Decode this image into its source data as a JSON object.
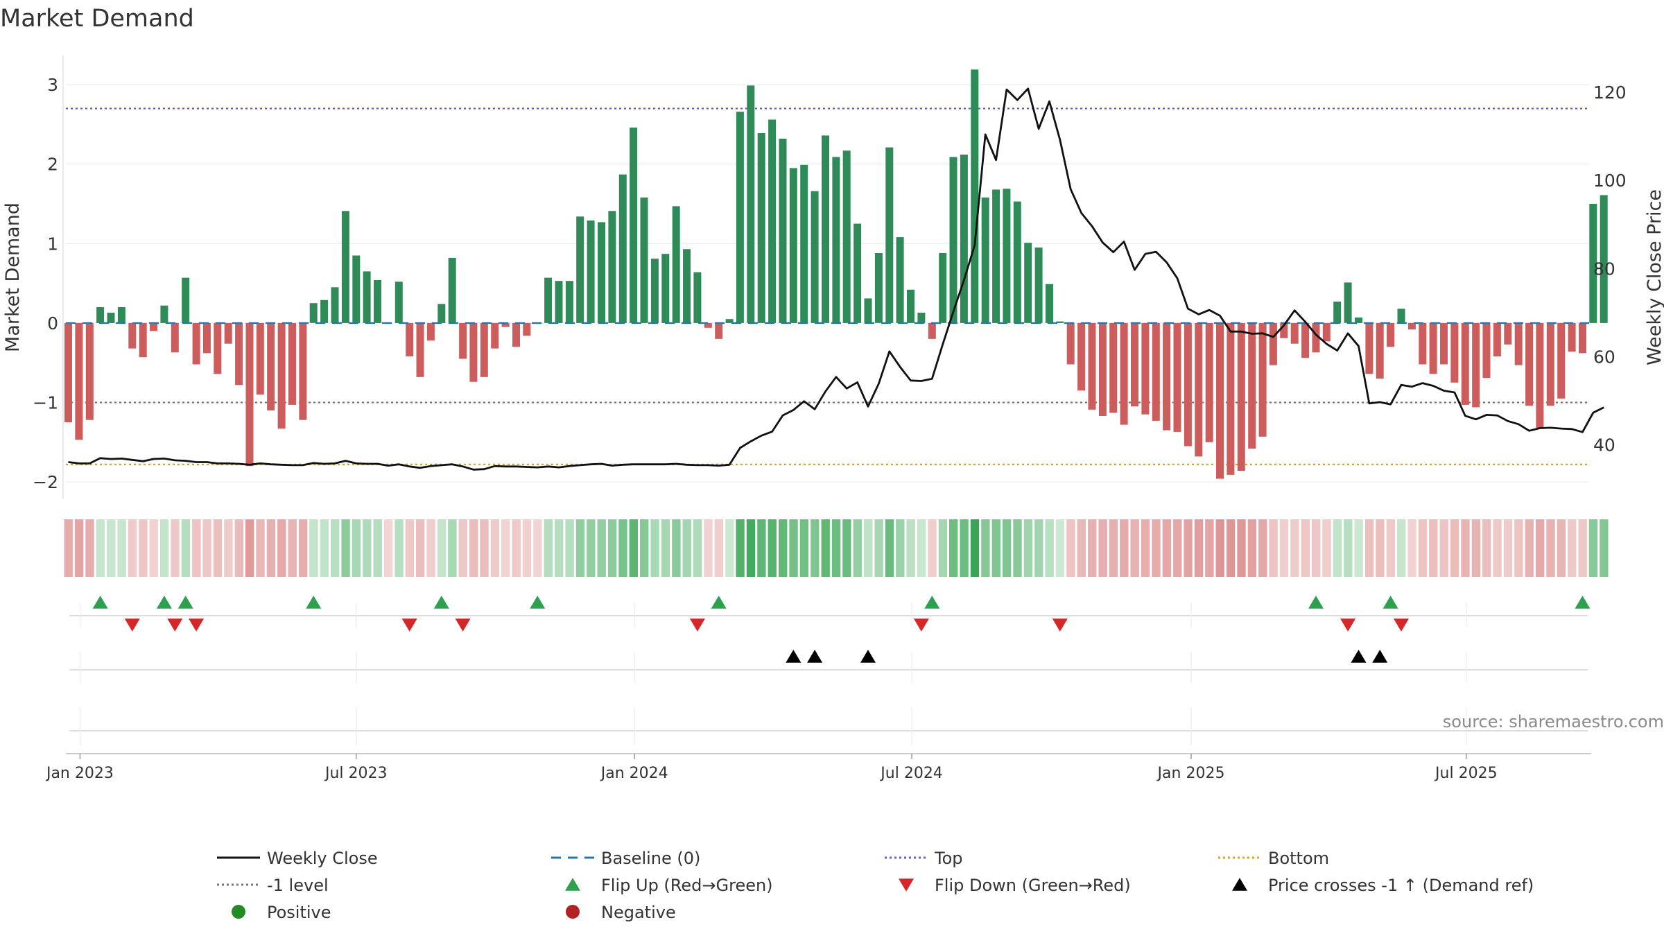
{
  "chart_data": {
    "type": "bar",
    "title": "Market Demand",
    "ylabel": "Market Demand",
    "y2label": "Weekly Close Price",
    "source": "source: sharemaestro.com",
    "ylim": [
      -2.2,
      3.35
    ],
    "y2lim": [
      28,
      128
    ],
    "yticks": [
      "3",
      "2",
      "1",
      "0",
      "−1",
      "−2"
    ],
    "yticks_values": [
      3,
      2,
      1,
      0,
      -1,
      -2
    ],
    "y2ticks": [
      "120",
      "100",
      "80",
      "60",
      "40"
    ],
    "y2ticks_values": [
      120,
      100,
      80,
      60,
      40
    ],
    "xticks": [
      "Jan 2023",
      "Jul 2023",
      "Jan 2024",
      "Jul 2024",
      "Jan 2025",
      "Jul 2025"
    ],
    "xticks_week": [
      1.1,
      27.0,
      53.1,
      79.1,
      105.3,
      131.1
    ],
    "reference_lines": {
      "top": 2.7,
      "bottom": -1.78,
      "minus_one": -1,
      "baseline": 0
    },
    "colors": {
      "positive": "#2e8b57",
      "negative": "#cd5c5c",
      "close": "#111111",
      "baseline": "#1f77b4",
      "top": "#6a5acd",
      "bottom": "#daa520",
      "minus_one": "#777777",
      "flip_up": "#2ca04c",
      "flip_down": "#d62728",
      "cross": "#000000",
      "pos_dot": "#228b22",
      "neg_dot": "#b22222"
    },
    "demand": [
      -1.25,
      -1.47,
      -1.22,
      0.2,
      0.13,
      0.2,
      -0.32,
      -0.43,
      -0.1,
      0.22,
      -0.37,
      0.57,
      -0.52,
      -0.38,
      -0.64,
      -0.26,
      -0.78,
      -1.8,
      -0.9,
      -1.1,
      -1.33,
      -1.03,
      -1.22,
      0.25,
      0.29,
      0.45,
      1.41,
      0.85,
      0.65,
      0.54,
      0.0,
      0.52,
      -0.42,
      -0.68,
      -0.22,
      0.24,
      0.82,
      -0.45,
      -0.74,
      -0.68,
      -0.32,
      -0.05,
      -0.3,
      -0.16,
      0.0,
      0.57,
      0.53,
      0.53,
      1.34,
      1.29,
      1.27,
      1.41,
      1.87,
      2.46,
      1.58,
      0.81,
      0.87,
      1.47,
      0.93,
      0.64,
      -0.06,
      -0.2,
      0.05,
      2.66,
      2.99,
      2.39,
      2.56,
      2.32,
      1.95,
      1.99,
      1.66,
      2.36,
      2.09,
      2.17,
      1.25,
      0.31,
      0.88,
      2.21,
      1.08,
      0.42,
      0.13,
      -0.2,
      0.88,
      2.09,
      2.12,
      3.19,
      1.58,
      1.68,
      1.69,
      1.53,
      1.01,
      0.95,
      0.49,
      0.02,
      -0.52,
      -0.85,
      -1.09,
      -1.17,
      -1.13,
      -1.28,
      -1.05,
      -1.15,
      -1.23,
      -1.35,
      -1.37,
      -1.55,
      -1.68,
      -1.5,
      -1.96,
      -1.91,
      -1.86,
      -1.58,
      -1.43,
      -0.53,
      -0.19,
      -0.26,
      -0.44,
      -0.37,
      -0.23,
      0.27,
      0.51,
      0.07,
      -0.64,
      -0.7,
      -0.3,
      0.18,
      -0.08,
      -0.52,
      -0.64,
      -0.52,
      -0.75,
      -1.03,
      -1.06,
      -0.69,
      -0.42,
      -0.27,
      -0.53,
      -1.04,
      -1.32,
      -1.04,
      -0.95,
      -0.36,
      -0.38,
      1.5,
      1.61
    ],
    "close": [
      36.1,
      35.8,
      35.8,
      37,
      36.8,
      36.9,
      36.6,
      36.3,
      36.8,
      36.9,
      36.5,
      36.4,
      36.1,
      36.1,
      35.8,
      35.8,
      35.7,
      35.5,
      35.8,
      35.6,
      35.5,
      35.4,
      35.4,
      35.9,
      35.7,
      35.8,
      36.4,
      35.8,
      35.7,
      35.7,
      35.3,
      35.6,
      35.1,
      34.8,
      35.2,
      35.4,
      35.6,
      35.1,
      34.4,
      34.5,
      35.2,
      35.1,
      35.1,
      35,
      34.9,
      35.1,
      34.9,
      35.2,
      35.4,
      35.6,
      35.7,
      35.3,
      35.5,
      35.6,
      35.6,
      35.6,
      35.6,
      35.7,
      35.5,
      35.4,
      35.4,
      35.3,
      35.5,
      39.3,
      40.8,
      42.1,
      43,
      46.7,
      47.9,
      49.9,
      48.1,
      52.1,
      55.4,
      52.8,
      54.2,
      48.7,
      53.9,
      61.2,
      57.7,
      54.6,
      54.5,
      55,
      62.8,
      70.2,
      77.4,
      85.3,
      110.4,
      104.6,
      120.6,
      118.2,
      120.8,
      111.7,
      117.9,
      109.2,
      98,
      92.6,
      89.6,
      85.9,
      83.7,
      86.1,
      79.7,
      83.3,
      83.8,
      81.4,
      77.8,
      70.9,
      69.6,
      70.6,
      69.3,
      65.7,
      65.7,
      65.2,
      65.3,
      64.5,
      67.1,
      70.5,
      67.9,
      65,
      62.9,
      61.4,
      65.3,
      62.4,
      49.4,
      49.7,
      49.2,
      53.6,
      53.2,
      54,
      53.4,
      52.3,
      51.9,
      46.6,
      45.8,
      46.8,
      46.7,
      45.4,
      44.7,
      43.2,
      43.8,
      43.9,
      43.7,
      43.6,
      42.9,
      47.3,
      48.5
    ],
    "flip_up_weeks": [
      3,
      9,
      11,
      23,
      35,
      44,
      61,
      81,
      117,
      124,
      142
    ],
    "flip_down_weeks": [
      6,
      10,
      12,
      32,
      37,
      59,
      80,
      93,
      120,
      125
    ],
    "cross_weeks": [
      68,
      70,
      75,
      121,
      123
    ],
    "legend": [
      {
        "label": "Weekly Close",
        "kind": "line-solid"
      },
      {
        "label": "Baseline (0)",
        "kind": "line-dashed"
      },
      {
        "label": "Top",
        "kind": "line-dotted-top"
      },
      {
        "label": "Bottom",
        "kind": "line-dotted-bottom"
      },
      {
        "label": "-1 level",
        "kind": "line-dotted-minus1"
      },
      {
        "label": "Flip Up (Red→Green)",
        "kind": "tri-up-green"
      },
      {
        "label": "Flip Down (Green→Red)",
        "kind": "tri-down-red"
      },
      {
        "label": "Price crosses -1 ↑ (Demand ref)",
        "kind": "tri-up-black"
      },
      {
        "label": "Positive",
        "kind": "dot-green"
      },
      {
        "label": "Negative",
        "kind": "dot-red"
      }
    ]
  }
}
